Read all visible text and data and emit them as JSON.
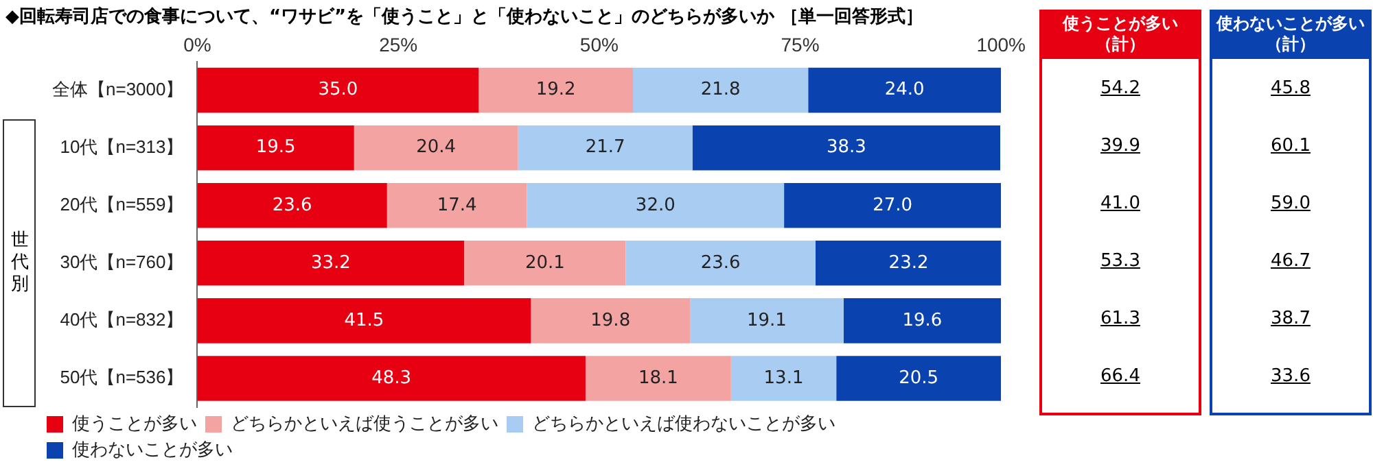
{
  "chart_data": [
    {
      "type": "bar",
      "orientation": "horizontal",
      "stacked": true,
      "title": "◆回転寿司店での食事について、“ワサビ”を「使うこと」と「使わないこと」のどちらが多いか ［単一回答形式］",
      "categories": [
        "全体【n=3000】",
        "10代【n=313】",
        "20代【n=559】",
        "30代【n=760】",
        "40代【n=832】",
        "50代【n=536】"
      ],
      "series": [
        {
          "name": "使うことが多い",
          "color": "#e60012",
          "values": [
            35.0,
            19.5,
            23.6,
            33.2,
            41.5,
            48.3
          ],
          "value_labels": [
            "35.0",
            "19.5",
            "23.6",
            "33.2",
            "41.5",
            "48.3"
          ]
        },
        {
          "name": "どちらかといえば使うことが多い",
          "color": "#f4a3a3",
          "values": [
            19.2,
            20.4,
            17.4,
            20.1,
            19.8,
            18.1
          ],
          "value_labels": [
            "19.2",
            "20.4",
            "17.4",
            "20.1",
            "19.8",
            "18.1"
          ]
        },
        {
          "name": "どちらかといえば使わないことが多い",
          "color": "#a9cdf2",
          "values": [
            21.8,
            21.7,
            32.0,
            23.6,
            19.1,
            13.1
          ],
          "value_labels": [
            "21.8",
            "21.7",
            "32.0",
            "23.6",
            "19.1",
            "13.1"
          ]
        },
        {
          "name": "使わないことが多い",
          "color": "#0a43b0",
          "values": [
            24.0,
            38.3,
            27.0,
            23.2,
            19.6,
            20.5
          ],
          "value_labels": [
            "24.0",
            "38.3",
            "27.0",
            "23.2",
            "19.6",
            "20.5"
          ]
        }
      ],
      "xlim": [
        0,
        100
      ],
      "xticks": [
        {
          "value": 0,
          "label": "0%"
        },
        {
          "value": 25,
          "label": "25%"
        },
        {
          "value": 50,
          "label": "50%"
        },
        {
          "value": 75,
          "label": "75%"
        },
        {
          "value": 100,
          "label": "100%"
        }
      ],
      "grid": false,
      "legend": "bottom",
      "annotations": [
        "世代別"
      ]
    },
    {
      "type": "other",
      "categories": [
        "使うことが多い（計）",
        "使わないことが多い（計）"
      ],
      "colors": [
        "#e60012",
        "#0a43b0"
      ],
      "annotations": [
        "54.2",
        "45.8",
        "39.9",
        "60.1",
        "41.0",
        "59.0",
        "53.3",
        "46.7",
        "61.3",
        "38.7",
        "66.4",
        "33.6"
      ]
    }
  ]
}
